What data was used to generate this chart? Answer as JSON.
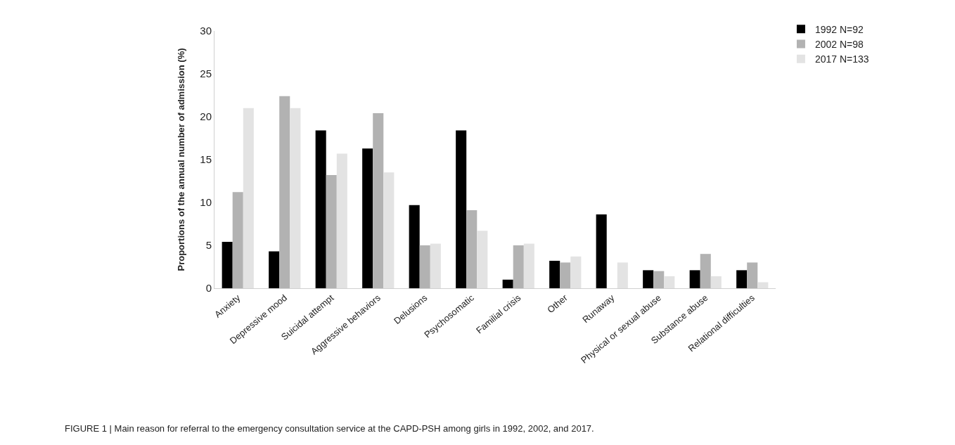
{
  "chart_data": {
    "type": "bar",
    "ylabel": "Proportions of the annual number of admission (%)",
    "categories": [
      "Anxiety",
      "Depressive mood",
      "Suicidal attempt",
      "Aggressive behaviors",
      "Delusions",
      "Psychosomatic",
      "Familial crisis",
      "Other",
      "Runaway",
      "Physical or sexual abuse",
      "Substance abuse",
      "Relational difficulties"
    ],
    "series": [
      {
        "name": "1992 N=92",
        "color": "#000000",
        "values": [
          5.4,
          4.3,
          18.4,
          16.3,
          9.7,
          18.4,
          1.0,
          3.2,
          8.6,
          2.1,
          2.1,
          2.1
        ]
      },
      {
        "name": "2002 N=98",
        "color": "#b2b2b2",
        "values": [
          11.2,
          22.4,
          13.2,
          20.4,
          5.0,
          9.1,
          5.0,
          3.0,
          0,
          2.0,
          4.0,
          3.0
        ]
      },
      {
        "name": "2017 N=133",
        "color": "#e3e3e3",
        "values": [
          21.0,
          21.0,
          15.7,
          13.5,
          5.2,
          6.7,
          5.2,
          3.7,
          3.0,
          1.4,
          1.4,
          0.7
        ]
      }
    ],
    "ylim": [
      0,
      30
    ],
    "yticks": [
      0,
      5,
      10,
      15,
      20,
      25,
      30
    ],
    "legend": "top right",
    "annotations": [
      "FIGURE 1 | Main reason for referral to the emergency consultation service at the CAPD-PSH among girls in 1992, 2002, and 2017."
    ]
  }
}
